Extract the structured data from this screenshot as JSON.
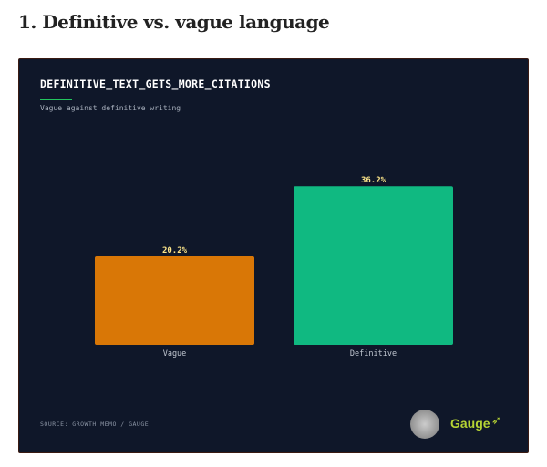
{
  "heading": "1. Definitive vs. vague language",
  "chart_data": {
    "type": "bar",
    "title": "DEFINITIVE_TEXT_GETS_MORE_CITATIONS",
    "subtitle": "Vague against definitive writing",
    "categories": [
      "Vague",
      "Definitive"
    ],
    "values": [
      20.2,
      36.2
    ],
    "data_labels": [
      "20.2%",
      "36.2%"
    ],
    "colors": [
      "#d97706",
      "#10b981"
    ],
    "ylim": [
      0,
      40
    ],
    "grid": false
  },
  "footer": {
    "source": "SOURCE: GROWTH MEMO / GAUGE",
    "logo_text": "Gauge",
    "logo_color": "#b5d334",
    "badge_icon": "growth-memo-badge"
  },
  "colors": {
    "background": "#0f1729",
    "accent": "#22c55e",
    "label": "#fde68a"
  }
}
